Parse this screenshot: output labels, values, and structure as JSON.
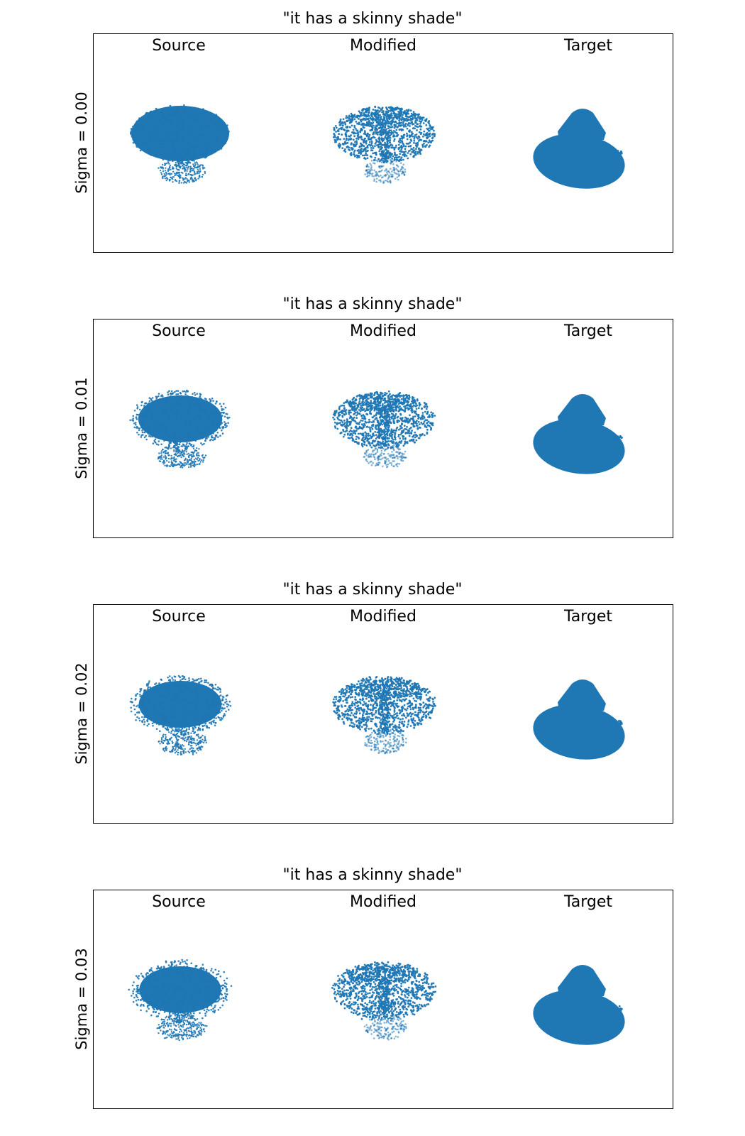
{
  "figure": {
    "point_color": "#1f77b4",
    "panels": [
      {
        "title": "\"it has a skinny shade\"",
        "ylabel": "Sigma = 0.00",
        "sigma": 0.0,
        "columns": [
          "Source",
          "Modified",
          "Target"
        ]
      },
      {
        "title": "\"it has a skinny shade\"",
        "ylabel": "Sigma = 0.01",
        "sigma": 0.01,
        "columns": [
          "Source",
          "Modified",
          "Target"
        ]
      },
      {
        "title": "\"it has a skinny shade\"",
        "ylabel": "Sigma = 0.02",
        "sigma": 0.02,
        "columns": [
          "Source",
          "Modified",
          "Target"
        ]
      },
      {
        "title": "\"it has a skinny shade\"",
        "ylabel": "Sigma = 0.03",
        "sigma": 0.03,
        "columns": [
          "Source",
          "Modified",
          "Target"
        ]
      }
    ]
  }
}
